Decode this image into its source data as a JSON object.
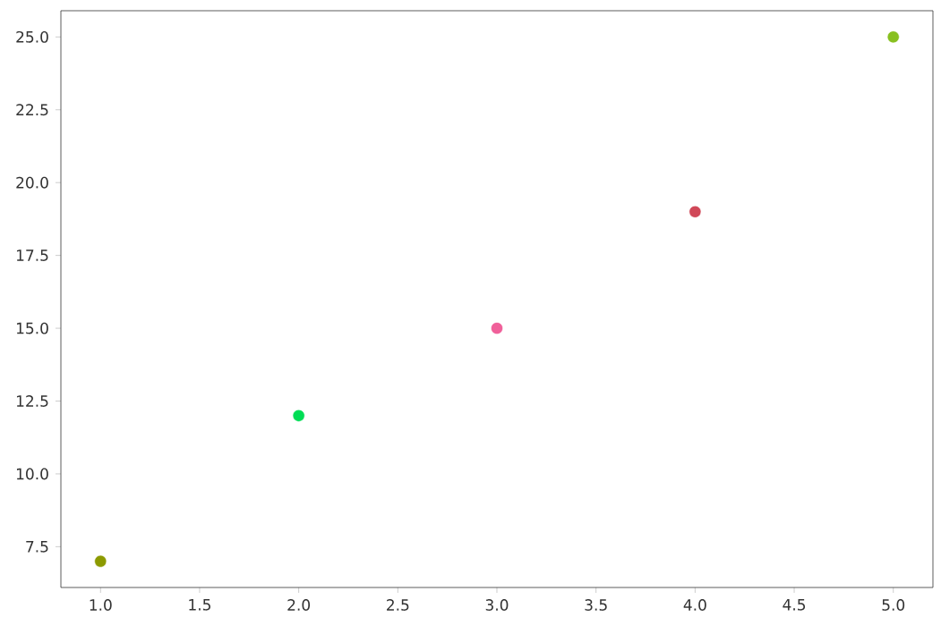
{
  "chart_data": {
    "type": "scatter",
    "x": [
      1,
      2,
      3,
      4,
      5
    ],
    "values": [
      7,
      12,
      15,
      19,
      25
    ],
    "colors": [
      "#8c9a00",
      "#00dd55",
      "#f0609a",
      "#d04858",
      "#88c020"
    ],
    "marker": "circle",
    "xlim": [
      0.8,
      5.2
    ],
    "ylim": [
      6.1,
      25.9
    ],
    "xticks": [
      {
        "value": 1,
        "label": "1.0"
      },
      1.5,
      {
        "value": 2,
        "label": "2.0"
      },
      2.5,
      {
        "value": 3,
        "label": "3.0"
      },
      3.5,
      {
        "value": 4,
        "label": "4.0"
      },
      4.5,
      {
        "value": 5,
        "label": "5.0"
      }
    ],
    "yticks": [
      7.5,
      {
        "value": 10,
        "label": "10.0"
      },
      12.5,
      {
        "value": 15,
        "label": "15.0"
      },
      17.5,
      {
        "value": 20,
        "label": "20.0"
      },
      22.5,
      {
        "value": 25,
        "label": "25.0"
      }
    ],
    "grid": false
  }
}
